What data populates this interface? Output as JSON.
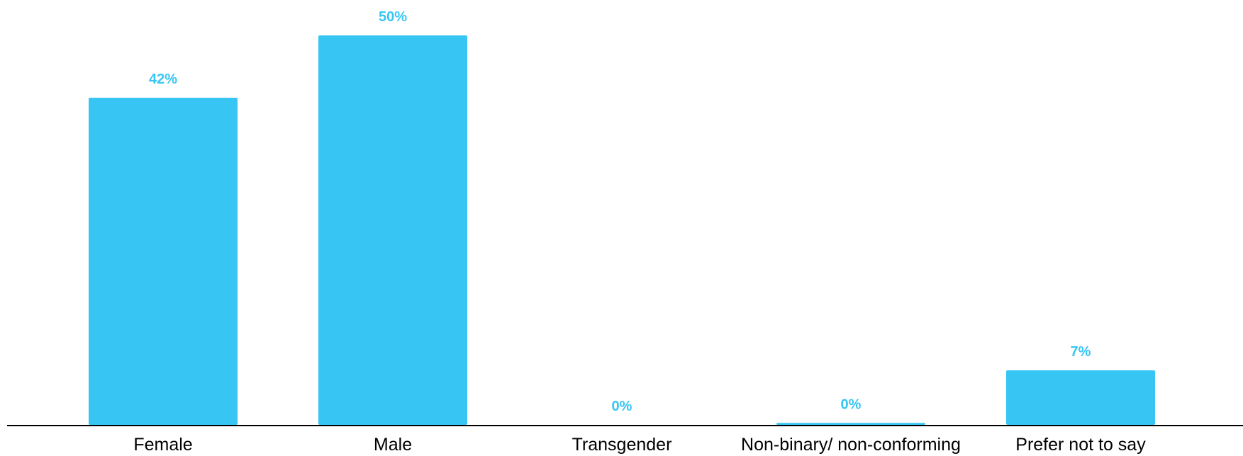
{
  "chart_data": {
    "type": "bar",
    "categories": [
      "Female",
      "Male",
      "Transgender",
      "Non-binary/ non-conforming",
      "Prefer not to say"
    ],
    "values": [
      42,
      50,
      0,
      0.25,
      7
    ],
    "data_labels": [
      "42%",
      "50%",
      "0%",
      "0%",
      "7%"
    ],
    "title": "",
    "xlabel": "",
    "ylabel": "",
    "ylim": [
      0,
      50
    ],
    "grid": false,
    "legend": "none"
  },
  "colors": {
    "bar": "#37C6F4",
    "label": "#37C6F4",
    "axis": "#000000"
  }
}
